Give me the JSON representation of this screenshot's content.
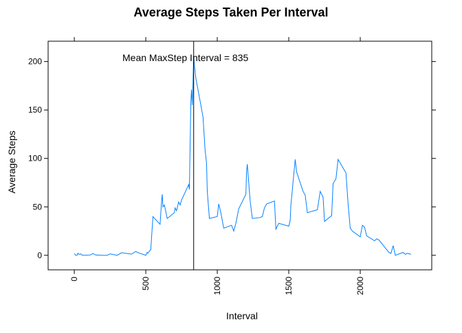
{
  "chart_data": {
    "type": "line",
    "title": "Average Steps Taken Per Interval",
    "xlabel": "Interval",
    "ylabel": "Average Steps",
    "annotation": "Mean MaxStep Interval =  835",
    "vline": 835,
    "x": [
      0,
      10,
      20,
      25,
      35,
      45,
      55,
      110,
      130,
      150,
      200,
      230,
      250,
      300,
      330,
      400,
      430,
      440,
      500,
      510,
      515,
      520,
      535,
      550,
      600,
      610,
      615,
      620,
      630,
      650,
      700,
      705,
      715,
      730,
      740,
      750,
      800,
      805,
      815,
      820,
      825,
      830,
      835,
      840,
      850,
      900,
      915,
      925,
      930,
      945,
      1000,
      1010,
      1025,
      1045,
      1100,
      1115,
      1130,
      1150,
      1200,
      1205,
      1210,
      1230,
      1245,
      1300,
      1315,
      1330,
      1345,
      1400,
      1410,
      1430,
      1500,
      1510,
      1515,
      1545,
      1555,
      1600,
      1615,
      1630,
      1700,
      1720,
      1740,
      1750,
      1800,
      1810,
      1830,
      1845,
      1900,
      1915,
      1930,
      1945,
      2000,
      2015,
      2030,
      2045,
      2100,
      2115,
      2130,
      2200,
      2215,
      2230,
      2245,
      2300,
      2315,
      2330,
      2355
    ],
    "series": [
      {
        "name": "Average Steps",
        "color": "#0080ff",
        "values": [
          1.7,
          0.1,
          0.1,
          2.1,
          0.9,
          1.5,
          0.1,
          0.2,
          1.8,
          0.3,
          0,
          0,
          1.5,
          0,
          2.6,
          1.2,
          4,
          3,
          0,
          3,
          2.2,
          3.3,
          6,
          40,
          32,
          55,
          63,
          50,
          52,
          38,
          44,
          49,
          46,
          55,
          52,
          57,
          73,
          68,
          158,
          171,
          155,
          177,
          206,
          196,
          183,
          143,
          108,
          95,
          66,
          38,
          40,
          53,
          44,
          28,
          31,
          25,
          33,
          48,
          63,
          87,
          94,
          56,
          38,
          39,
          40,
          49,
          53,
          56,
          27,
          33,
          30,
          36,
          52,
          99,
          86,
          66,
          62,
          44,
          47,
          66,
          60,
          35,
          41,
          74,
          79,
          99,
          85,
          53,
          28,
          25,
          19,
          31,
          29,
          20,
          15,
          17,
          16,
          3,
          2,
          10,
          0,
          3,
          1,
          2,
          1
        ]
      }
    ],
    "xlim": [
      -183,
      2500
    ],
    "ylim": [
      -15,
      221
    ],
    "xticks": [
      0,
      500,
      1000,
      1500,
      2000
    ],
    "yticks": [
      0,
      50,
      100,
      150,
      200
    ]
  }
}
